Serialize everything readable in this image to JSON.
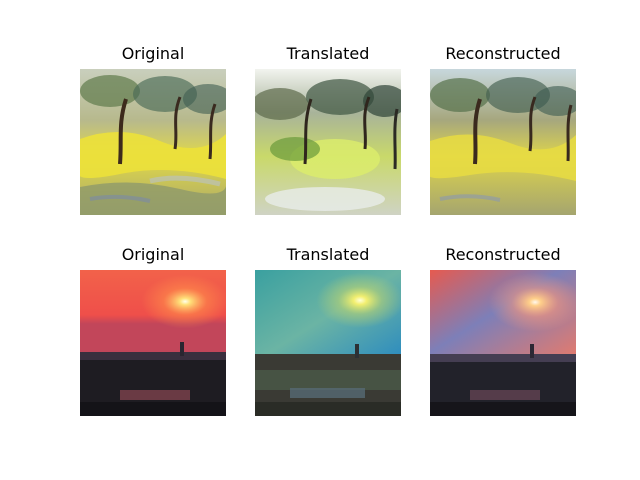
{
  "figure": {
    "rows": [
      {
        "name": "olive-trees",
        "panels": [
          {
            "title": "Original",
            "variant": "painting-original"
          },
          {
            "title": "Translated",
            "variant": "painting-translated"
          },
          {
            "title": "Reconstructed",
            "variant": "painting-reconstructed"
          }
        ]
      },
      {
        "name": "sunset",
        "panels": [
          {
            "title": "Original",
            "variant": "sunset-original"
          },
          {
            "title": "Translated",
            "variant": "sunset-translated"
          },
          {
            "title": "Reconstructed",
            "variant": "sunset-reconstructed"
          }
        ]
      }
    ]
  }
}
